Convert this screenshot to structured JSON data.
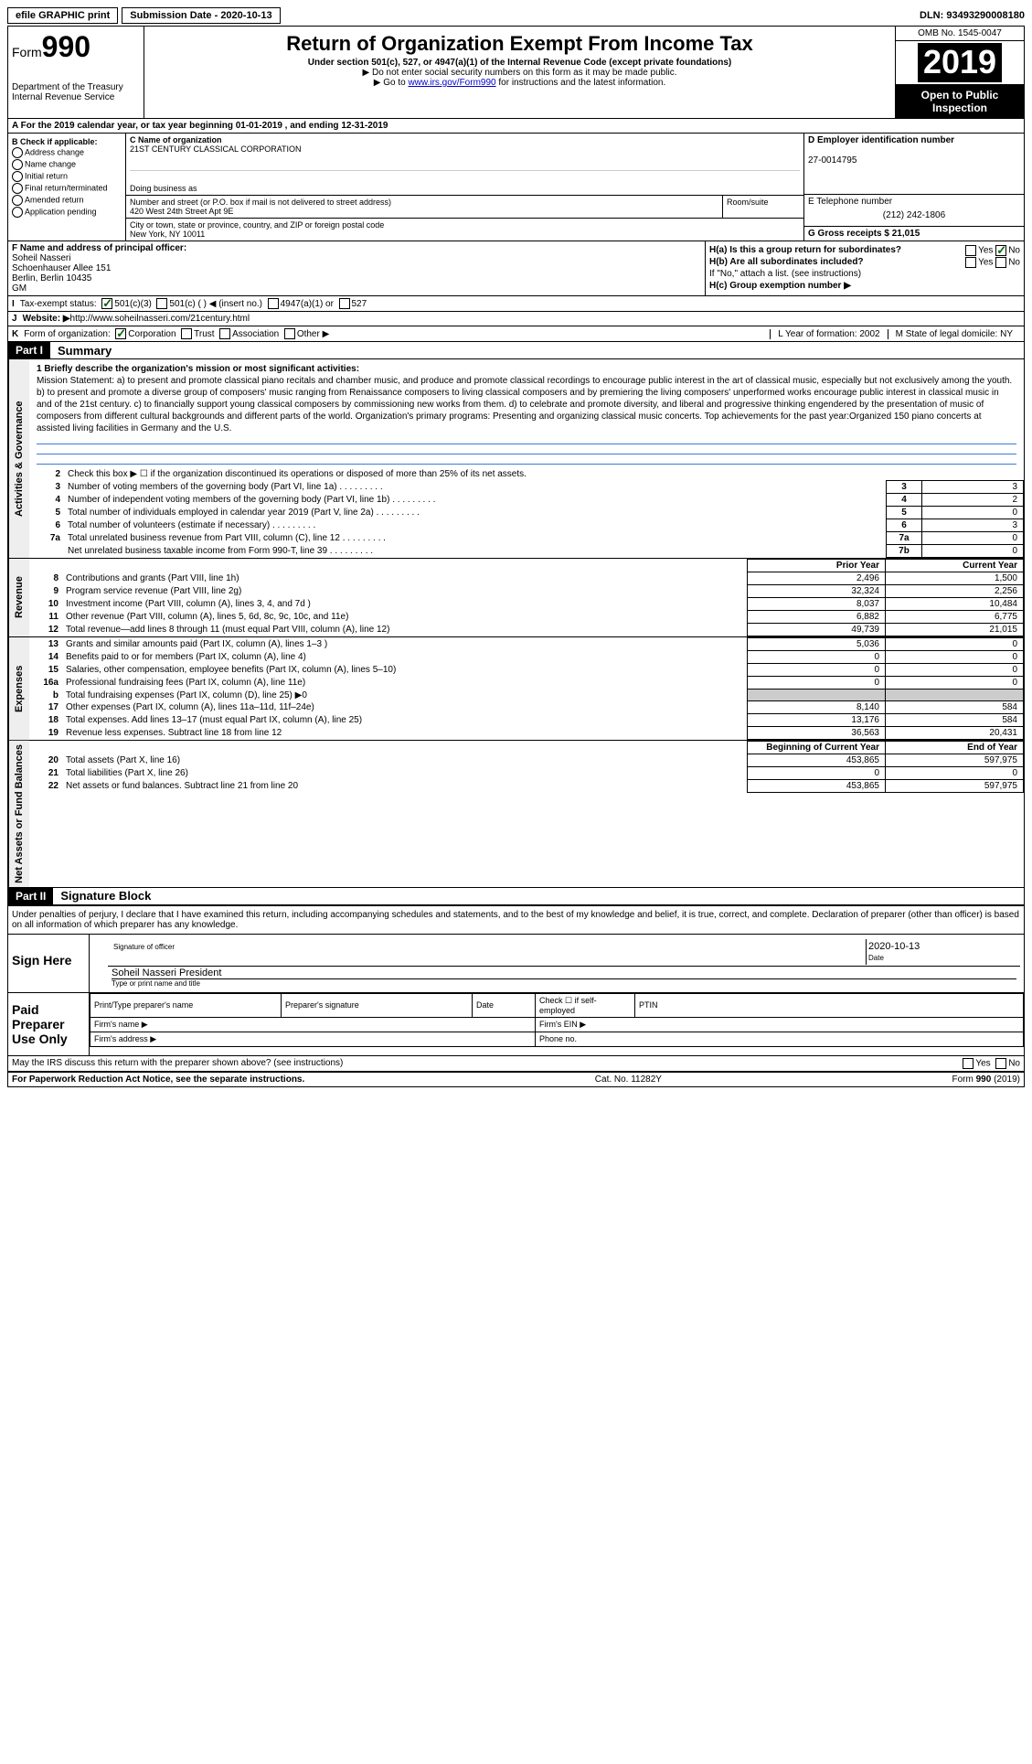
{
  "top": {
    "efile": "efile GRAPHIC print",
    "submission": "Submission Date - 2020-10-13",
    "dln": "DLN: 93493290008180"
  },
  "header": {
    "form_label": "Form",
    "form_number": "990",
    "dept": "Department of the Treasury\nInternal Revenue Service",
    "title": "Return of Organization Exempt From Income Tax",
    "sub1": "Under section 501(c), 527, or 4947(a)(1) of the Internal Revenue Code (except private foundations)",
    "sub2": "▶ Do not enter social security numbers on this form as it may be made public.",
    "sub3_pre": "▶ Go to ",
    "sub3_link": "www.irs.gov/Form990",
    "sub3_post": " for instructions and the latest information.",
    "omb": "OMB No. 1545-0047",
    "year": "2019",
    "inspection": "Open to Public Inspection"
  },
  "row_a": "A  For the 2019 calendar year, or tax year beginning 01-01-2019    , and ending 12-31-2019",
  "section_b": {
    "title": "B Check if applicable:",
    "opts": [
      "Address change",
      "Name change",
      "Initial return",
      "Final return/terminated",
      "Amended return",
      "Application pending"
    ]
  },
  "section_c": {
    "c_label": "C Name of organization",
    "c_name": "21ST CENTURY CLASSICAL CORPORATION",
    "dba_label": "Doing business as",
    "addr_label": "Number and street (or P.O. box if mail is not delivered to street address)",
    "addr": "420 West 24th Street Apt 9E",
    "room_label": "Room/suite",
    "city_label": "City or town, state or province, country, and ZIP or foreign postal code",
    "city": "New York, NY  10011"
  },
  "section_d": {
    "d_label": "D Employer identification number",
    "d_val": "27-0014795",
    "e_label": "E Telephone number",
    "e_val": "(212) 242-1806",
    "g_label": "G Gross receipts $ 21,015"
  },
  "section_f": {
    "f_label": "F  Name and address of principal officer:",
    "name": "Soheil Nasseri",
    "addr1": "Schoenhauser Allee 151",
    "addr2": "Berlin, Berlin  10435",
    "addr3": "GM"
  },
  "section_h": {
    "ha": "H(a)  Is this a group return for subordinates?",
    "hb": "H(b)  Are all subordinates included?",
    "hb_note": "If \"No,\" attach a list. (see instructions)",
    "hc": "H(c)  Group exemption number ▶",
    "yes": "Yes",
    "no": "No"
  },
  "row_i": {
    "lbl": "I",
    "text": "Tax-exempt status:",
    "opt1": "501(c)(3)",
    "opt2": "501(c) (   ) ◀ (insert no.)",
    "opt3": "4947(a)(1) or",
    "opt4": "527"
  },
  "row_j": {
    "lbl": "J",
    "text": "Website: ▶ ",
    "url": "http://www.soheilnasseri.com/21century.html"
  },
  "row_k": {
    "lbl": "K",
    "text": "Form of organization:",
    "opts": [
      "Corporation",
      "Trust",
      "Association",
      "Other ▶"
    ],
    "l": "L Year of formation: 2002",
    "m": "M State of legal domicile: NY"
  },
  "part1": {
    "header": "Part I",
    "title": "Summary"
  },
  "mission": {
    "label": "1 Briefly describe the organization's mission or most significant activities:",
    "text": "Mission Statement: a) to present and promote classical piano recitals and chamber music, and produce and promote classical recordings to encourage public interest in the art of classical music, especially but not exclusively among the youth. b) to present and promote a diverse group of composers' music ranging from Renaissance composers to living classical composers and by premiering the living composers' unperformed works encourage public interest in classical music in and of the 21st century. c) to financially support young classical composers by commissioning new works from them. d) to celebrate and promote diversity, and liberal and progressive thinking engendered by the presentation of music of composers from different cultural backgrounds and different parts of the world. Organization's primary programs: Presenting and organizing classical music concerts. Top achievements for the past year:Organized 150 piano concerts at assisted living facilities in Germany and the U.S."
  },
  "governance": {
    "line2": "Check this box ▶ ☐  if the organization discontinued its operations or disposed of more than 25% of its net assets.",
    "rows": [
      {
        "n": "3",
        "desc": "Number of voting members of the governing body (Part VI, line 1a)",
        "box": "3",
        "val": "3"
      },
      {
        "n": "4",
        "desc": "Number of independent voting members of the governing body (Part VI, line 1b)",
        "box": "4",
        "val": "2"
      },
      {
        "n": "5",
        "desc": "Total number of individuals employed in calendar year 2019 (Part V, line 2a)",
        "box": "5",
        "val": "0"
      },
      {
        "n": "6",
        "desc": "Total number of volunteers (estimate if necessary)",
        "box": "6",
        "val": "3"
      },
      {
        "n": "7a",
        "desc": "Total unrelated business revenue from Part VIII, column (C), line 12",
        "box": "7a",
        "val": "0"
      },
      {
        "n": "",
        "desc": "Net unrelated business taxable income from Form 990-T, line 39",
        "box": "7b",
        "val": "0"
      }
    ]
  },
  "revenue": {
    "prior_hdr": "Prior Year",
    "current_hdr": "Current Year",
    "rows": [
      {
        "n": "8",
        "desc": "Contributions and grants (Part VIII, line 1h)",
        "prior": "2,496",
        "current": "1,500"
      },
      {
        "n": "9",
        "desc": "Program service revenue (Part VIII, line 2g)",
        "prior": "32,324",
        "current": "2,256"
      },
      {
        "n": "10",
        "desc": "Investment income (Part VIII, column (A), lines 3, 4, and 7d )",
        "prior": "8,037",
        "current": "10,484"
      },
      {
        "n": "11",
        "desc": "Other revenue (Part VIII, column (A), lines 5, 6d, 8c, 9c, 10c, and 11e)",
        "prior": "6,882",
        "current": "6,775"
      },
      {
        "n": "12",
        "desc": "Total revenue—add lines 8 through 11 (must equal Part VIII, column (A), line 12)",
        "prior": "49,739",
        "current": "21,015"
      }
    ]
  },
  "expenses": {
    "rows": [
      {
        "n": "13",
        "desc": "Grants and similar amounts paid (Part IX, column (A), lines 1–3 )",
        "prior": "5,036",
        "current": "0"
      },
      {
        "n": "14",
        "desc": "Benefits paid to or for members (Part IX, column (A), line 4)",
        "prior": "0",
        "current": "0"
      },
      {
        "n": "15",
        "desc": "Salaries, other compensation, employee benefits (Part IX, column (A), lines 5–10)",
        "prior": "0",
        "current": "0"
      },
      {
        "n": "16a",
        "desc": "Professional fundraising fees (Part IX, column (A), line 11e)",
        "prior": "0",
        "current": "0"
      },
      {
        "n": "b",
        "desc": "Total fundraising expenses (Part IX, column (D), line 25) ▶0",
        "prior": "grey",
        "current": "grey"
      },
      {
        "n": "17",
        "desc": "Other expenses (Part IX, column (A), lines 11a–11d, 11f–24e)",
        "prior": "8,140",
        "current": "584"
      },
      {
        "n": "18",
        "desc": "Total expenses. Add lines 13–17 (must equal Part IX, column (A), line 25)",
        "prior": "13,176",
        "current": "584"
      },
      {
        "n": "19",
        "desc": "Revenue less expenses. Subtract line 18 from line 12",
        "prior": "36,563",
        "current": "20,431"
      }
    ]
  },
  "netassets": {
    "begin_hdr": "Beginning of Current Year",
    "end_hdr": "End of Year",
    "rows": [
      {
        "n": "20",
        "desc": "Total assets (Part X, line 16)",
        "prior": "453,865",
        "current": "597,975"
      },
      {
        "n": "21",
        "desc": "Total liabilities (Part X, line 26)",
        "prior": "0",
        "current": "0"
      },
      {
        "n": "22",
        "desc": "Net assets or fund balances. Subtract line 21 from line 20",
        "prior": "453,865",
        "current": "597,975"
      }
    ]
  },
  "sidebars": {
    "gov": "Activities & Governance",
    "rev": "Revenue",
    "exp": "Expenses",
    "net": "Net Assets or Fund Balances"
  },
  "part2": {
    "header": "Part II",
    "title": "Signature Block",
    "declaration": "Under penalties of perjury, I declare that I have examined this return, including accompanying schedules and statements, and to the best of my knowledge and belief, it is true, correct, and complete. Declaration of preparer (other than officer) is based on all information of which preparer has any knowledge."
  },
  "sign": {
    "lbl": "Sign Here",
    "sig_lbl": "Signature of officer",
    "date_lbl": "Date",
    "date_val": "2020-10-13",
    "name": "Soheil Nasseri President",
    "name_lbl": "Type or print name and title"
  },
  "preparer": {
    "lbl": "Paid Preparer Use Only",
    "print_name": "Print/Type preparer's name",
    "sig": "Preparer's signature",
    "date": "Date",
    "check": "Check ☐ if self-employed",
    "ptin": "PTIN",
    "firm_name": "Firm's name  ▶",
    "firm_ein": "Firm's EIN ▶",
    "firm_addr": "Firm's address ▶",
    "phone": "Phone no."
  },
  "footer": {
    "discuss": "May the IRS discuss this return with the preparer shown above? (see instructions)",
    "yes": "Yes",
    "no": "No",
    "paperwork": "For Paperwork Reduction Act Notice, see the separate instructions.",
    "cat": "Cat. No. 11282Y",
    "form": "Form 990 (2019)"
  }
}
